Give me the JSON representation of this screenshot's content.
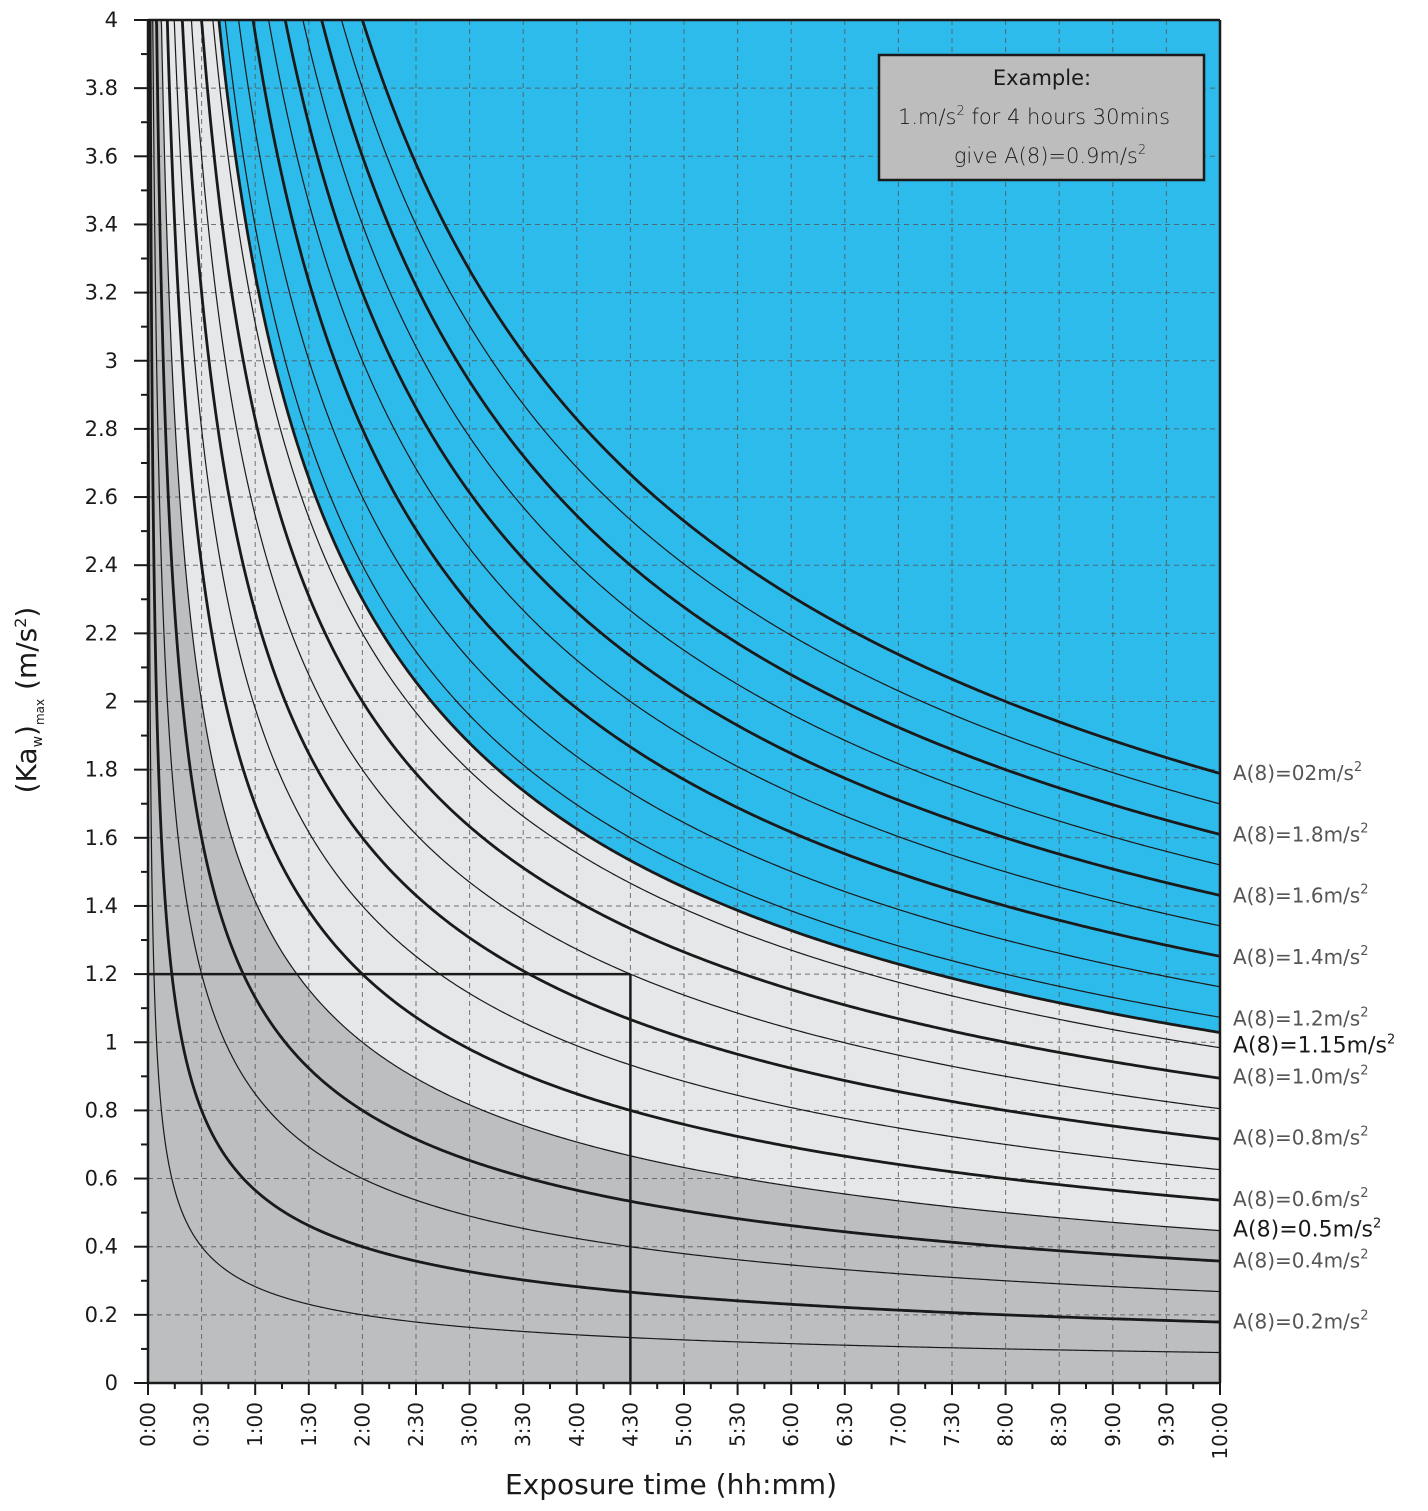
{
  "chart_data": {
    "type": "line",
    "xlabel": "Exposure time (hh:mm)",
    "ylabel_main": "(Ka",
    "ylabel_sub_w": "w",
    "ylabel_close": ")",
    "ylabel_sub_max": "max",
    "ylabel_unit": " (m/s",
    "ylabel_sup": "2",
    "ylabel_end": ")",
    "xlim": [
      0,
      10
    ],
    "ylim": [
      0,
      4
    ],
    "x_ticks": [
      0,
      0.5,
      1,
      1.5,
      2,
      2.5,
      3,
      3.5,
      4,
      4.5,
      5,
      5.5,
      6,
      6.5,
      7,
      7.5,
      8,
      8.5,
      9,
      9.5,
      10
    ],
    "x_tick_labels": [
      "0:00",
      "0:30",
      "1:00",
      "1:30",
      "2:00",
      "2:30",
      "3:00",
      "3:30",
      "4:00",
      "4:30",
      "5:00",
      "5:30",
      "6:00",
      "6:30",
      "7:00",
      "7:30",
      "8:00",
      "8:30",
      "9:00",
      "9:30",
      "10:00"
    ],
    "y_ticks": [
      0,
      0.2,
      0.4,
      0.6,
      0.8,
      1,
      1.2,
      1.4,
      1.6,
      1.8,
      2,
      2.2,
      2.4,
      2.6,
      2.8,
      3,
      3.2,
      3.4,
      3.6,
      3.8,
      4
    ],
    "y_tick_labels": [
      "0",
      "0.2",
      "0.4",
      "0.6",
      "0.8",
      "1",
      "1.2",
      "1.4",
      "1.6",
      "1.8",
      "2",
      "2.2",
      "2.4",
      "2.6",
      "2.8",
      "3",
      "3.2",
      "3.4",
      "3.6",
      "3.8",
      "4"
    ],
    "grid": true,
    "formula": "y = A8 * sqrt(8 / x)",
    "zones": [
      {
        "from": 0,
        "to": 0.5,
        "color": "#bdbec0"
      },
      {
        "from": 0.5,
        "to": 1.15,
        "color": "#e6e7e8"
      },
      {
        "from": 1.15,
        "to": null,
        "color": "#2dbbeb"
      }
    ],
    "series": [
      {
        "a8": 0.1,
        "bold": false
      },
      {
        "a8": 0.2,
        "bold": true
      },
      {
        "a8": 0.3,
        "bold": false
      },
      {
        "a8": 0.4,
        "bold": true
      },
      {
        "a8": 0.5,
        "bold": false
      },
      {
        "a8": 0.6,
        "bold": true
      },
      {
        "a8": 0.7,
        "bold": false
      },
      {
        "a8": 0.8,
        "bold": true
      },
      {
        "a8": 0.9,
        "bold": false
      },
      {
        "a8": 1.0,
        "bold": true
      },
      {
        "a8": 1.1,
        "bold": false
      },
      {
        "a8": 1.15,
        "bold": true
      },
      {
        "a8": 1.2,
        "bold": false
      },
      {
        "a8": 1.3,
        "bold": false
      },
      {
        "a8": 1.4,
        "bold": true
      },
      {
        "a8": 1.5,
        "bold": false
      },
      {
        "a8": 1.6,
        "bold": true
      },
      {
        "a8": 1.7,
        "bold": false
      },
      {
        "a8": 1.8,
        "bold": true
      },
      {
        "a8": 1.9,
        "bold": false
      },
      {
        "a8": 2.0,
        "bold": true
      }
    ],
    "right_labels": [
      {
        "text": "A(8)=02m/s",
        "sup": "2",
        "y": 1.79,
        "style": "light"
      },
      {
        "text": "A(8)=1.8m/s",
        "sup": "2",
        "y": 1.61,
        "style": "light"
      },
      {
        "text": "A(8)=1.6m/s",
        "sup": "2",
        "y": 1.43,
        "style": "light"
      },
      {
        "text": "A(8)=1.4m/s",
        "sup": "2",
        "y": 1.25,
        "style": "light"
      },
      {
        "text": "A(8)=1.2m/s",
        "sup": "2",
        "y": 1.07,
        "style": "light"
      },
      {
        "text": "A(8)=1.15m/s",
        "sup": "2",
        "y": 0.99,
        "style": "bold"
      },
      {
        "text": "A(8)=1.0m/s",
        "sup": "2",
        "y": 0.9,
        "style": "light"
      },
      {
        "text": "A(8)=0.8m/s",
        "sup": "2",
        "y": 0.72,
        "style": "light"
      },
      {
        "text": "A(8)=0.6m/s",
        "sup": "2",
        "y": 0.54,
        "style": "light"
      },
      {
        "text": "A(8)=0.5m/s",
        "sup": "2",
        "y": 0.45,
        "style": "bold"
      },
      {
        "text": "A(8)=0.4m/s",
        "sup": "2",
        "y": 0.36,
        "style": "light"
      },
      {
        "text": "A(8)=0.2m/s",
        "sup": "2",
        "y": 0.18,
        "style": "light"
      }
    ],
    "example_lines": {
      "x": 4.5,
      "y": 1.2
    },
    "annotation": {
      "line1": "Example:",
      "line2a": "1.m/s",
      "line2sup": "2",
      "line2b": " for 4 hours 30mins",
      "line3a": "give A(8)=0.9m/s",
      "line3sup": "2"
    }
  }
}
